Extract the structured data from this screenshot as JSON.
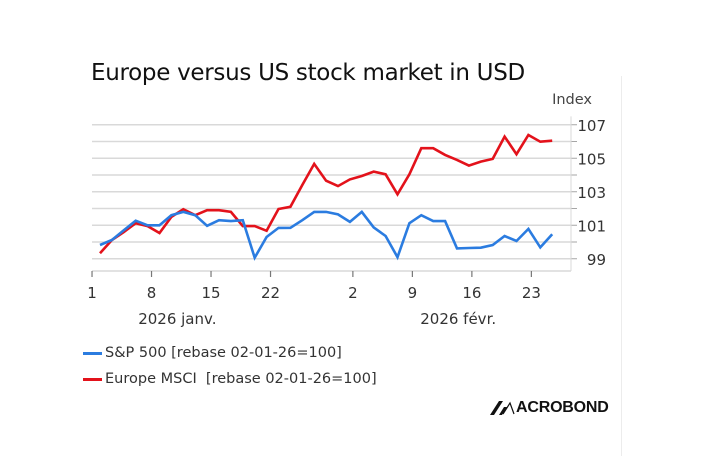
{
  "chart_data": {
    "type": "line",
    "title": "Europe versus US stock market in USD",
    "ylabel": "Index",
    "xlabel": "",
    "ylim": [
      98.6,
      107.5
    ],
    "y_ticks": [
      99,
      100,
      101,
      102,
      103,
      104,
      105,
      106,
      107
    ],
    "y_tick_labels": [
      "99",
      "101",
      "103",
      "105",
      "107"
    ],
    "y_tick_label_values": [
      99,
      101,
      103,
      105,
      107
    ],
    "grid": true,
    "x_ticks": [
      {
        "label": "1",
        "pos": -0.67
      },
      {
        "label": "8",
        "pos": 4.33
      },
      {
        "label": "15",
        "pos": 9.33
      },
      {
        "label": "22",
        "pos": 14.33
      },
      {
        "label": "2",
        "pos": 21.25
      },
      {
        "label": "9",
        "pos": 26.25
      },
      {
        "label": "16",
        "pos": 31.25
      },
      {
        "label": "23",
        "pos": 36.25
      }
    ],
    "x_groups": [
      {
        "label": "2026 janv.",
        "center": 6.5
      },
      {
        "label": "2026 févr.",
        "center": 30.1
      }
    ],
    "legend_position": "bottom-left",
    "series": [
      {
        "name": "S&P 500 [rebase 02-01-26=100]",
        "color": "#2b7ce0",
        "values": [
          99.82,
          100.12,
          100.7,
          101.27,
          101.0,
          101.0,
          101.6,
          101.8,
          101.6,
          100.97,
          101.3,
          101.25,
          101.3,
          99.06,
          100.3,
          100.84,
          100.85,
          101.3,
          101.8,
          101.8,
          101.65,
          101.2,
          101.8,
          100.87,
          100.36,
          99.09,
          101.12,
          101.6,
          101.25,
          101.25,
          99.62,
          99.64,
          99.66,
          99.82,
          100.36,
          100.06,
          100.78,
          99.68,
          100.46
        ]
      },
      {
        "name": "Europe MSCI  [rebase 02-01-26=100]",
        "color": "#e3121b",
        "values": [
          99.33,
          100.12,
          100.6,
          101.12,
          100.95,
          100.54,
          101.5,
          101.95,
          101.6,
          101.9,
          101.9,
          101.8,
          100.95,
          100.95,
          100.67,
          101.97,
          102.1,
          103.4,
          104.66,
          103.66,
          103.34,
          103.74,
          103.94,
          104.2,
          104.04,
          102.85,
          104.04,
          105.6,
          105.6,
          105.2,
          104.9,
          104.56,
          104.8,
          104.96,
          106.29,
          105.24,
          106.39,
          105.99,
          106.05
        ]
      }
    ]
  },
  "logo": {
    "text": "ACROBOND"
  }
}
